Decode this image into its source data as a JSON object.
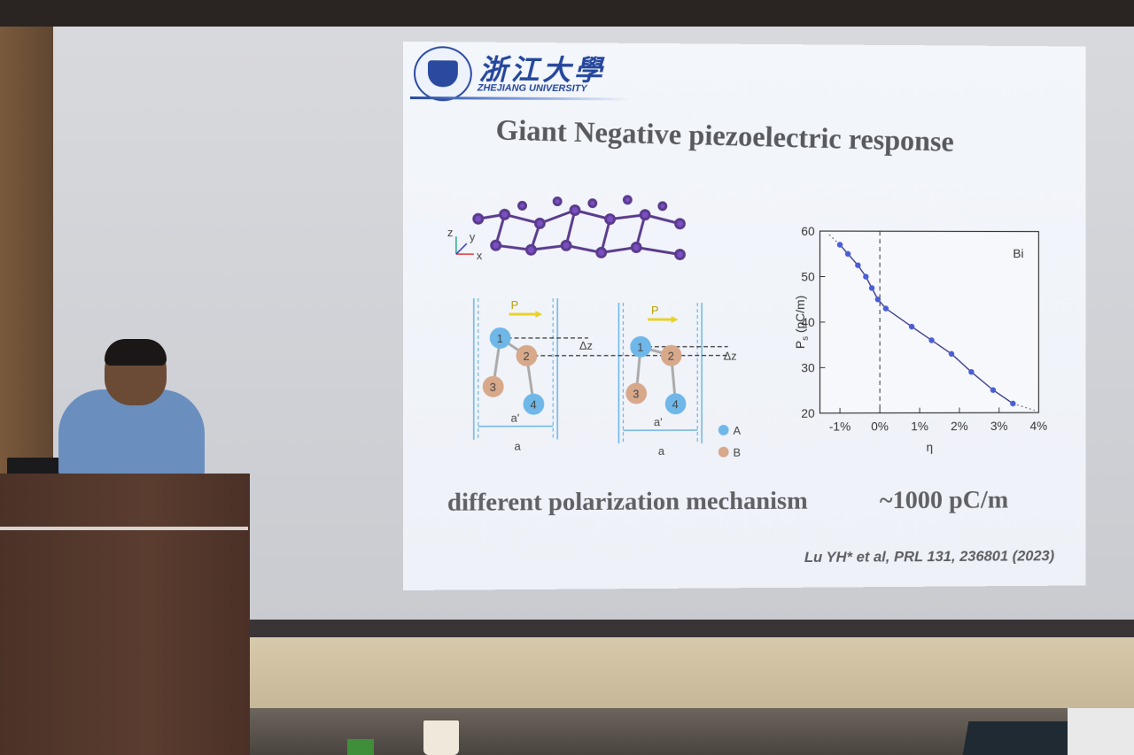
{
  "slide": {
    "logo_cn": "浙江大學",
    "logo_en": "ZHEJIANG UNIVERSITY",
    "title": "Giant Negative piezoelectric response",
    "mechanism_text": "different polarization mechanism",
    "value_text": "~1000 pC/m",
    "citation": "Lu YH* et al, PRL 131, 236801 (2023)",
    "structure_axes": {
      "z": "z",
      "y": "y",
      "x": "x"
    },
    "schematic": {
      "ps_label": "P",
      "ps_sub": "S",
      "dz_label": "Δz",
      "a_label": "a",
      "a_prime_label": "a'",
      "atoms": [
        "1",
        "2",
        "3",
        "4"
      ],
      "legend_a": "A",
      "legend_b": "B",
      "colors": {
        "atom_a": "#6fb7e8",
        "atom_b": "#d7a88a",
        "arrow": "#e8d22a",
        "guide": "#6ab4e6"
      }
    }
  },
  "chart_data": {
    "type": "scatter",
    "annotation": "Bi",
    "xlabel": "η",
    "ylabel": "P_s (pC/m)",
    "ylabel_main": "P",
    "ylabel_sub": "s",
    "ylabel_unit": " (pC/m)",
    "xlim": [
      -1.5,
      4
    ],
    "ylim": [
      20,
      60
    ],
    "xticks": [
      -1,
      0,
      1,
      2,
      3,
      4
    ],
    "xtick_labels": [
      "-1%",
      "0%",
      "1%",
      "2%",
      "3%",
      "4%"
    ],
    "yticks": [
      20,
      30,
      40,
      50,
      60
    ],
    "ytick_labels": [
      "20",
      "30",
      "40",
      "50",
      "60"
    ],
    "x": [
      -1.0,
      -0.8,
      -0.55,
      -0.35,
      -0.2,
      -0.05,
      0.15,
      0.8,
      1.3,
      1.8,
      2.3,
      2.85,
      3.35
    ],
    "y": [
      57.0,
      55.0,
      52.5,
      50.0,
      47.5,
      45.0,
      43.0,
      39.0,
      36.0,
      33.0,
      29.0,
      25.0,
      22.0
    ],
    "vline_x": 0,
    "colors": {
      "points": "#4a5ed4",
      "line": "#3a3a8a"
    }
  }
}
